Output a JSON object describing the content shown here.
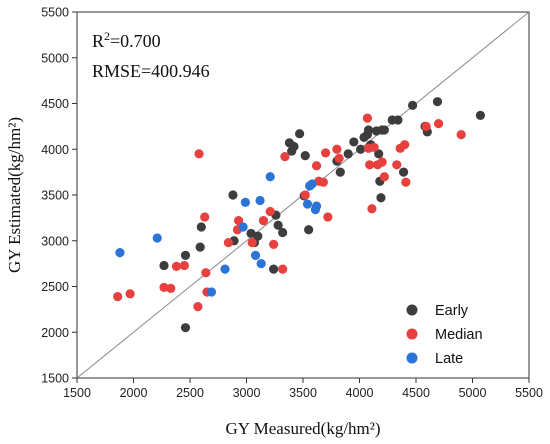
{
  "chart_data": {
    "type": "scatter",
    "title": "",
    "xlabel": "GY Measured(kg/hm²)",
    "ylabel": "GY Estimated(kg/hm²)",
    "xlim": [
      1500,
      5500
    ],
    "ylim": [
      1500,
      5500
    ],
    "xticks": [
      1500,
      2000,
      2500,
      3000,
      3500,
      4000,
      4500,
      5000,
      5500
    ],
    "yticks": [
      1500,
      2000,
      2500,
      3000,
      3500,
      4000,
      4500,
      5000,
      5500
    ],
    "reference_line": "1:1",
    "annotations": {
      "r2_prefix": "R",
      "r2_sup": "2",
      "r2_value": "=0.700",
      "rmse": "RMSE=400.946"
    },
    "legend_position": "bottom-right",
    "grid": false,
    "series": [
      {
        "name": "Early",
        "color": "#3d3d3d",
        "points": [
          [
            2270,
            2730
          ],
          [
            2460,
            2840
          ],
          [
            2460,
            2050
          ],
          [
            2590,
            2930
          ],
          [
            2600,
            3150
          ],
          [
            2880,
            3500
          ],
          [
            2890,
            3000
          ],
          [
            3040,
            3080
          ],
          [
            3070,
            2980
          ],
          [
            3100,
            3050
          ],
          [
            3240,
            2690
          ],
          [
            3260,
            3280
          ],
          [
            3280,
            3170
          ],
          [
            3320,
            3090
          ],
          [
            3380,
            4070
          ],
          [
            3400,
            3980
          ],
          [
            3420,
            4030
          ],
          [
            3470,
            4170
          ],
          [
            3520,
            3930
          ],
          [
            3510,
            3490
          ],
          [
            3550,
            3120
          ],
          [
            3560,
            3600
          ],
          [
            3800,
            3870
          ],
          [
            3830,
            3750
          ],
          [
            3900,
            3950
          ],
          [
            3950,
            4080
          ],
          [
            4010,
            4000
          ],
          [
            4040,
            4130
          ],
          [
            4070,
            4160
          ],
          [
            4080,
            4210
          ],
          [
            4100,
            4050
          ],
          [
            4150,
            4200
          ],
          [
            4170,
            3950
          ],
          [
            4180,
            3650
          ],
          [
            4190,
            3470
          ],
          [
            4200,
            4210
          ],
          [
            4220,
            4210
          ],
          [
            4290,
            4320
          ],
          [
            4340,
            4320
          ],
          [
            4390,
            3750
          ],
          [
            4470,
            4480
          ],
          [
            4580,
            4250
          ],
          [
            4600,
            4190
          ],
          [
            4690,
            4520
          ],
          [
            5070,
            4370
          ]
        ]
      },
      {
        "name": "Median",
        "color": "#e8403f",
        "points": [
          [
            1860,
            2390
          ],
          [
            1970,
            2420
          ],
          [
            2270,
            2490
          ],
          [
            2330,
            2480
          ],
          [
            2380,
            2720
          ],
          [
            2450,
            2730
          ],
          [
            2570,
            2280
          ],
          [
            2580,
            3950
          ],
          [
            2630,
            3260
          ],
          [
            2640,
            2650
          ],
          [
            2650,
            2440
          ],
          [
            2840,
            2980
          ],
          [
            2920,
            3120
          ],
          [
            2930,
            3220
          ],
          [
            3050,
            2980
          ],
          [
            3150,
            3220
          ],
          [
            3210,
            3320
          ],
          [
            3240,
            2960
          ],
          [
            3320,
            2690
          ],
          [
            3340,
            3920
          ],
          [
            3520,
            3500
          ],
          [
            3620,
            3820
          ],
          [
            3640,
            3650
          ],
          [
            3680,
            3640
          ],
          [
            3700,
            3960
          ],
          [
            3720,
            3260
          ],
          [
            3800,
            4000
          ],
          [
            3820,
            3900
          ],
          [
            4070,
            4340
          ],
          [
            4080,
            4010
          ],
          [
            4090,
            3830
          ],
          [
            4110,
            3350
          ],
          [
            4130,
            4020
          ],
          [
            4160,
            3830
          ],
          [
            4200,
            3860
          ],
          [
            4220,
            3700
          ],
          [
            4330,
            3830
          ],
          [
            4360,
            4010
          ],
          [
            4400,
            4050
          ],
          [
            4410,
            3640
          ],
          [
            4590,
            4250
          ],
          [
            4700,
            4280
          ],
          [
            4900,
            4160
          ]
        ]
      },
      {
        "name": "Late",
        "color": "#2a74d8",
        "points": [
          [
            1880,
            2870
          ],
          [
            2210,
            3030
          ],
          [
            2690,
            2440
          ],
          [
            2810,
            2690
          ],
          [
            2970,
            3150
          ],
          [
            2990,
            3420
          ],
          [
            3080,
            2840
          ],
          [
            3120,
            3440
          ],
          [
            3130,
            2750
          ],
          [
            3210,
            3700
          ],
          [
            3540,
            3400
          ],
          [
            3560,
            3600
          ],
          [
            3580,
            3620
          ],
          [
            3610,
            3340
          ],
          [
            3620,
            3380
          ]
        ]
      }
    ]
  }
}
